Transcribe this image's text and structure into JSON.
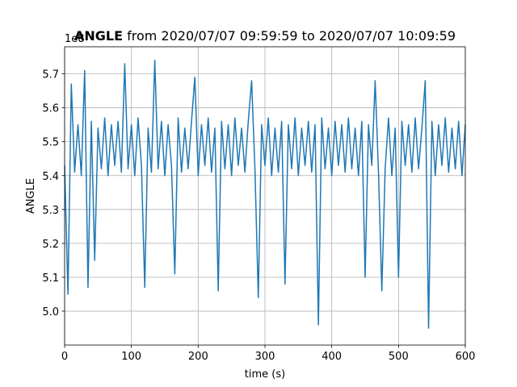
{
  "chart_data": {
    "type": "line",
    "title": {
      "bold": "ANGLE",
      "text": "from 2020/07/07 09:59:59 to 2020/07/07 10:09:59"
    },
    "x_label": "time (s)",
    "y_label": "ANGLE",
    "y_offset_label": "1e8",
    "xlim": [
      0,
      600
    ],
    "xticks": [
      0,
      100,
      200,
      300,
      400,
      500,
      600
    ],
    "ylim": [
      4.9,
      5.78
    ],
    "yticks": [
      {
        "value": 5,
        "label": "5.0"
      },
      5.1,
      5.2,
      5.3,
      5.4,
      5.5,
      5.6,
      5.7
    ],
    "grid": true,
    "series": [
      {
        "name": "ANGLE",
        "color": "#1f77b4",
        "x": [
          0,
          5,
          10,
          15,
          20,
          25,
          30,
          35,
          40,
          45,
          50,
          55,
          60,
          65,
          70,
          75,
          80,
          85,
          90,
          95,
          100,
          105,
          110,
          115,
          120,
          125,
          130,
          135,
          140,
          145,
          150,
          155,
          160,
          165,
          170,
          175,
          180,
          185,
          190,
          195,
          200,
          205,
          210,
          215,
          220,
          225,
          230,
          235,
          240,
          245,
          250,
          255,
          260,
          265,
          270,
          275,
          280,
          285,
          290,
          295,
          300,
          305,
          310,
          315,
          320,
          325,
          330,
          335,
          340,
          345,
          350,
          355,
          360,
          365,
          370,
          375,
          380,
          385,
          390,
          395,
          400,
          405,
          410,
          415,
          420,
          425,
          430,
          435,
          440,
          445,
          450,
          455,
          460,
          465,
          470,
          475,
          480,
          485,
          490,
          495,
          500,
          505,
          510,
          515,
          520,
          525,
          530,
          535,
          540,
          545,
          550,
          555,
          560,
          565,
          570,
          575,
          580,
          585,
          590,
          595,
          600
        ],
        "values": [
          5.43,
          5.05,
          5.67,
          5.41,
          5.55,
          5.4,
          5.71,
          5.07,
          5.56,
          5.15,
          5.54,
          5.42,
          5.57,
          5.4,
          5.55,
          5.43,
          5.56,
          5.41,
          5.73,
          5.42,
          5.55,
          5.4,
          5.57,
          5.43,
          5.07,
          5.54,
          5.41,
          5.74,
          5.42,
          5.56,
          5.4,
          5.55,
          5.43,
          5.11,
          5.57,
          5.41,
          5.54,
          5.42,
          5.56,
          5.69,
          5.4,
          5.55,
          5.43,
          5.57,
          5.41,
          5.54,
          5.06,
          5.56,
          5.42,
          5.55,
          5.4,
          5.57,
          5.43,
          5.54,
          5.41,
          5.56,
          5.68,
          5.42,
          5.04,
          5.55,
          5.43,
          5.57,
          5.4,
          5.54,
          5.41,
          5.56,
          5.08,
          5.55,
          5.42,
          5.57,
          5.4,
          5.54,
          5.43,
          5.56,
          5.41,
          5.55,
          4.96,
          5.57,
          5.42,
          5.54,
          5.4,
          5.56,
          5.43,
          5.55,
          5.41,
          5.57,
          5.42,
          5.54,
          5.4,
          5.56,
          5.1,
          5.55,
          5.43,
          5.68,
          5.41,
          5.06,
          5.42,
          5.57,
          5.4,
          5.54,
          5.1,
          5.56,
          5.43,
          5.55,
          5.41,
          5.57,
          5.42,
          5.54,
          5.68,
          4.95,
          5.56,
          5.4,
          5.55,
          5.43,
          5.57,
          5.41,
          5.54,
          5.42,
          5.56,
          5.4,
          5.55
        ]
      }
    ]
  }
}
